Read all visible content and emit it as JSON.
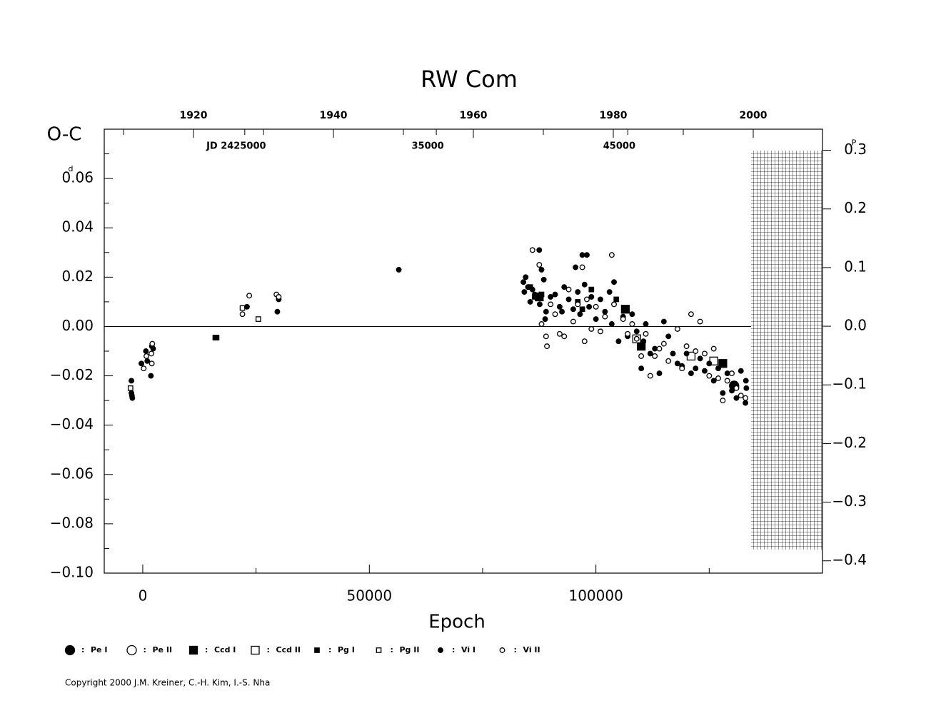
{
  "chart_data": {
    "type": "scatter",
    "title": "RW  Com",
    "y_label": "O-C",
    "y_unit": "d",
    "y2_unit": "P",
    "x_label": "Epoch",
    "copyright": "Copyright 2000 J.M. Kreiner, C.-H. Kim, I.-S. Nha",
    "legend_separator": ":",
    "xlim": [
      -8500,
      150000
    ],
    "ylim": [
      -0.1,
      0.08
    ],
    "y2lim": [
      -0.421,
      0.336
    ],
    "toplim": [
      1907.24,
      2009.9
    ],
    "jdlim": [
      2417664,
      2455161
    ],
    "xticks": [
      0,
      50000,
      100000
    ],
    "xminor": [
      25000,
      75000,
      125000
    ],
    "yticks": [
      {
        "value": -0.1,
        "label": "−0.10"
      },
      {
        "value": -0.08,
        "label": "−0.08"
      },
      {
        "value": -0.06,
        "label": "−0.06"
      },
      {
        "value": -0.04,
        "label": "−0.04"
      },
      {
        "value": -0.02,
        "label": "−0.02"
      },
      {
        "value": 0,
        "label": "0.00"
      },
      {
        "value": 0.02,
        "label": "0.02"
      },
      {
        "value": 0.04,
        "label": "0.04"
      },
      {
        "value": 0.06,
        "label": "0.06"
      }
    ],
    "yminor": [
      -0.09,
      -0.07,
      -0.05,
      -0.03,
      -0.01,
      0.01,
      0.03,
      0.05,
      0.07
    ],
    "y2ticks": [
      {
        "value": -0.4,
        "label": "−0.4"
      },
      {
        "value": -0.3,
        "label": "−0.3"
      },
      {
        "value": -0.2,
        "label": "−0.2"
      },
      {
        "value": -0.1,
        "label": "−0.1"
      },
      {
        "value": 0,
        "label": "0.0"
      },
      0.1,
      0.2,
      0.3
    ],
    "topticks": [
      1920,
      1940,
      1960,
      1980,
      2000
    ],
    "topminor": [
      1910,
      1930,
      1950,
      1970,
      1990
    ],
    "jdticks": [
      {
        "value": 2425000,
        "label": "JD 2425000"
      },
      {
        "value": 2435000,
        "label": "35000"
      },
      {
        "value": 2445000,
        "label": "45000"
      }
    ],
    "zero_line": 0,
    "series": [
      {
        "name": "Pe I",
        "marker": "circle",
        "filled": true,
        "size": "large",
        "x": [
          130500
        ],
        "y": [
          -0.024
        ]
      },
      {
        "name": "Pe II",
        "marker": "circle",
        "filled": false,
        "size": "large",
        "x": [],
        "y": []
      },
      {
        "name": "Ccd I",
        "marker": "square",
        "filled": true,
        "size": "large",
        "x": [
          87500,
          106500,
          110000,
          128000
        ],
        "y": [
          0.012,
          0.007,
          -0.008,
          -0.015
        ]
      },
      {
        "name": "Ccd II",
        "marker": "square",
        "filled": false,
        "size": "large",
        "x": [
          109000,
          121000,
          126000
        ],
        "y": [
          -0.005,
          -0.012,
          -0.014
        ]
      },
      {
        "name": "Pg I",
        "marker": "square",
        "filled": true,
        "size": "small",
        "x": [
          16000,
          16300,
          85500,
          86500,
          88000,
          96000,
          97000,
          99000,
          104500
        ],
        "y": [
          -0.0045,
          -0.0045,
          0.016,
          0.012,
          0.013,
          0.01,
          0.007,
          0.015,
          0.011
        ]
      },
      {
        "name": "Pg II",
        "marker": "square",
        "filled": false,
        "size": "small",
        "x": [
          -2700,
          22000,
          25500
        ],
        "y": [
          -0.025,
          0.0075,
          0.003
        ]
      },
      {
        "name": "Vi I",
        "marker": "circle",
        "filled": true,
        "size": "small",
        "x": [
          -2500,
          -2500,
          -2400,
          -2300,
          -300,
          700,
          1000,
          1800,
          2000,
          2300,
          23000,
          29700,
          30000,
          56500,
          84000,
          84200,
          84500,
          85000,
          85500,
          86000,
          86500,
          87500,
          87600,
          88000,
          88500,
          88800,
          89000,
          90000,
          91000,
          92000,
          92500,
          93000,
          94000,
          95000,
          95500,
          96000,
          96500,
          97000,
          97500,
          98000,
          98500,
          99000,
          100000,
          101000,
          102000,
          103000,
          103500,
          104000,
          105000,
          106000,
          107000,
          108000,
          109000,
          110000,
          110500,
          111000,
          112000,
          113000,
          114000,
          115000,
          116000,
          117000,
          118000,
          119000,
          120000,
          121000,
          122000,
          123000,
          124000,
          125000,
          126000,
          127000,
          128000,
          129000,
          130000,
          131000,
          132000,
          133000,
          133200,
          133100
        ],
        "y": [
          -0.022,
          -0.027,
          -0.028,
          -0.029,
          -0.015,
          -0.01,
          -0.014,
          -0.02,
          -0.008,
          -0.009,
          0.008,
          0.006,
          0.011,
          0.023,
          0.018,
          0.014,
          0.02,
          0.016,
          0.01,
          0.015,
          0.013,
          0.031,
          0.009,
          0.023,
          0.019,
          0.003,
          0.006,
          0.012,
          0.013,
          0.008,
          0.006,
          0.016,
          0.011,
          0.007,
          0.024,
          0.014,
          0.005,
          0.029,
          0.017,
          0.029,
          0.008,
          0.012,
          0.003,
          0.011,
          0.006,
          0.014,
          0.001,
          0.018,
          -0.006,
          0.004,
          -0.004,
          0.005,
          -0.002,
          -0.017,
          -0.006,
          0.001,
          -0.011,
          -0.009,
          -0.019,
          0.002,
          -0.004,
          -0.011,
          -0.015,
          -0.016,
          -0.011,
          -0.019,
          -0.017,
          -0.013,
          -0.018,
          -0.015,
          -0.022,
          -0.017,
          -0.027,
          -0.019,
          -0.026,
          -0.029,
          -0.018,
          -0.031,
          -0.025,
          -0.022
        ]
      },
      {
        "name": "Vi II",
        "marker": "circle",
        "filled": false,
        "size": "small",
        "x": [
          200,
          800,
          1900,
          2000,
          2100,
          22000,
          23500,
          29500,
          30000,
          86000,
          87500,
          88000,
          89000,
          89200,
          90000,
          91000,
          92000,
          93000,
          94000,
          95000,
          96000,
          97000,
          97500,
          98000,
          99000,
          100000,
          101000,
          102000,
          103500,
          104000,
          106000,
          107000,
          108000,
          109000,
          110000,
          111000,
          112000,
          113000,
          114000,
          115000,
          116000,
          118000,
          119000,
          120000,
          121000,
          122000,
          123000,
          124000,
          125000,
          126000,
          127000,
          128000,
          129000,
          130000,
          131000,
          132000,
          133000
        ],
        "y": [
          -0.017,
          -0.012,
          -0.011,
          -0.015,
          -0.007,
          0.005,
          0.0125,
          0.013,
          0.012,
          0.031,
          0.025,
          0.001,
          -0.004,
          -0.008,
          0.009,
          0.005,
          -0.003,
          -0.004,
          0.015,
          0.002,
          0.009,
          0.024,
          -0.006,
          0.011,
          -0.001,
          0.008,
          -0.002,
          0.004,
          0.029,
          0.009,
          0.003,
          -0.003,
          0.001,
          -0.005,
          -0.012,
          -0.003,
          -0.02,
          -0.012,
          -0.009,
          -0.007,
          -0.014,
          -0.001,
          -0.017,
          -0.008,
          0.005,
          -0.01,
          0.002,
          -0.011,
          -0.02,
          -0.009,
          -0.021,
          -0.03,
          -0.022,
          -0.019,
          -0.025,
          -0.028,
          -0.029
        ]
      }
    ]
  }
}
